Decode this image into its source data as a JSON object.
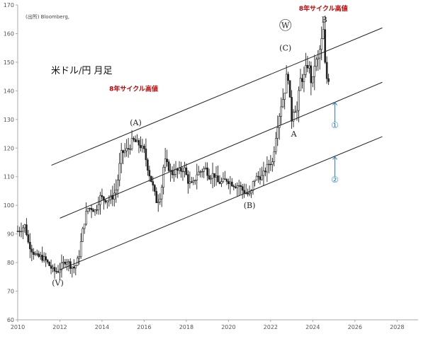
{
  "chart_data": {
    "type": "candlestick",
    "title": "米ドル/円 月足",
    "source": "(出所) Bloomberg,",
    "x_ticks": [
      "2010",
      "2012",
      "2014",
      "2016",
      "2018",
      "2020",
      "2022",
      "2024",
      "2026",
      "2028"
    ],
    "y_ticks": [
      "60",
      "70",
      "80",
      "90",
      "100",
      "110",
      "120",
      "130",
      "140",
      "150",
      "160",
      "170"
    ],
    "xlim": [
      2010.0,
      2029.0
    ],
    "ylim": [
      60,
      170
    ],
    "grid": false,
    "colors": {
      "axis": "#aaaaaa",
      "bars": "#222222",
      "lines": "#222222",
      "accent_red": "#c00000",
      "accent_blue": "#2a7fb8"
    },
    "price_path": [
      [
        2010.0,
        91
      ],
      [
        2010.2,
        92
      ],
      [
        2010.35,
        93
      ],
      [
        2010.5,
        87
      ],
      [
        2010.7,
        84
      ],
      [
        2010.9,
        82
      ],
      [
        2011.1,
        82
      ],
      [
        2011.3,
        81
      ],
      [
        2011.5,
        79
      ],
      [
        2011.7,
        77
      ],
      [
        2011.9,
        77
      ],
      [
        2012.1,
        79
      ],
      [
        2012.3,
        81
      ],
      [
        2012.5,
        79
      ],
      [
        2012.7,
        78
      ],
      [
        2012.9,
        82
      ],
      [
        2013.1,
        92
      ],
      [
        2013.3,
        99
      ],
      [
        2013.5,
        99
      ],
      [
        2013.7,
        98
      ],
      [
        2013.9,
        103
      ],
      [
        2014.1,
        102
      ],
      [
        2014.3,
        102
      ],
      [
        2014.5,
        103
      ],
      [
        2014.7,
        106
      ],
      [
        2014.9,
        118
      ],
      [
        2015.1,
        119
      ],
      [
        2015.3,
        120
      ],
      [
        2015.45,
        123
      ],
      [
        2015.6,
        122
      ],
      [
        2015.8,
        121
      ],
      [
        2016.0,
        119
      ],
      [
        2016.2,
        112
      ],
      [
        2016.4,
        107
      ],
      [
        2016.6,
        101
      ],
      [
        2016.8,
        104
      ],
      [
        2016.95,
        116
      ],
      [
        2017.1,
        114
      ],
      [
        2017.3,
        111
      ],
      [
        2017.5,
        112
      ],
      [
        2017.7,
        112
      ],
      [
        2017.9,
        113
      ],
      [
        2018.1,
        108
      ],
      [
        2018.3,
        107
      ],
      [
        2018.5,
        111
      ],
      [
        2018.7,
        112
      ],
      [
        2018.9,
        113
      ],
      [
        2019.1,
        110
      ],
      [
        2019.3,
        111
      ],
      [
        2019.5,
        108
      ],
      [
        2019.7,
        108
      ],
      [
        2019.9,
        109
      ],
      [
        2020.1,
        108
      ],
      [
        2020.3,
        107
      ],
      [
        2020.5,
        107
      ],
      [
        2020.7,
        105
      ],
      [
        2020.9,
        104
      ],
      [
        2021.05,
        103.5
      ],
      [
        2021.2,
        109
      ],
      [
        2021.4,
        110
      ],
      [
        2021.6,
        110
      ],
      [
        2021.8,
        113
      ],
      [
        2021.95,
        115
      ],
      [
        2022.1,
        115
      ],
      [
        2022.2,
        122
      ],
      [
        2022.35,
        129
      ],
      [
        2022.5,
        135
      ],
      [
        2022.65,
        139
      ],
      [
        2022.8,
        148
      ],
      [
        2022.9,
        138
      ],
      [
        2023.0,
        130
      ],
      [
        2023.1,
        134
      ],
      [
        2023.25,
        133
      ],
      [
        2023.4,
        144
      ],
      [
        2023.55,
        144
      ],
      [
        2023.7,
        149
      ],
      [
        2023.85,
        148
      ],
      [
        2023.95,
        141
      ],
      [
        2024.1,
        150
      ],
      [
        2024.25,
        151
      ],
      [
        2024.4,
        157
      ],
      [
        2024.5,
        161
      ],
      [
        2024.6,
        147
      ],
      [
        2024.7,
        143
      ],
      [
        2024.8,
        145
      ]
    ],
    "channel_lines": [
      {
        "from": [
          2011.6,
          114
        ],
        "to": [
          2027.3,
          162
        ]
      },
      {
        "from": [
          2012.0,
          95.5
        ],
        "to": [
          2027.3,
          143
        ]
      },
      {
        "from": [
          2012.0,
          77.5
        ],
        "to": [
          2027.3,
          124
        ]
      }
    ],
    "wave_labels": [
      {
        "text": "(A)",
        "x": 2015.6,
        "y": 128
      },
      {
        "text": "(V)",
        "x": 2011.9,
        "y": 72
      },
      {
        "text": "(B)",
        "x": 2021.0,
        "y": 99
      },
      {
        "text": "(C)",
        "x": 2022.7,
        "y": 154
      },
      {
        "text": "A",
        "x": 2023.1,
        "y": 124
      },
      {
        "text": "B",
        "x": 2024.55,
        "y": 164
      },
      {
        "text": "W",
        "x": 2022.7,
        "y": 162
      }
    ],
    "notes": [
      {
        "text": "8年サイクル高値",
        "x": 2015.5,
        "y": 140
      },
      {
        "text": "8年サイクル高値",
        "x": 2024.5,
        "y": 168
      }
    ],
    "reference_labels": [
      {
        "text": "①",
        "x": 2025.05,
        "y": 127
      },
      {
        "text": "②",
        "x": 2025.05,
        "y": 108
      }
    ],
    "reference_arrows": [
      {
        "x": 2025.05,
        "y_from": 129,
        "y_to": 136
      },
      {
        "x": 2025.05,
        "y_from": 110,
        "y_to": 117
      }
    ]
  }
}
